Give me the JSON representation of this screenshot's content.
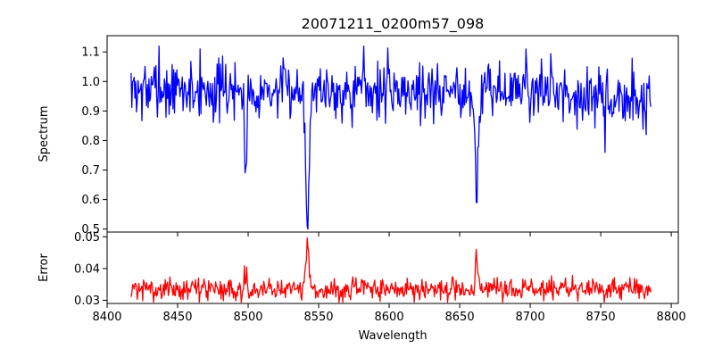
{
  "title": "20071211_0200m57_098",
  "chart_data": [
    {
      "panel": "spectrum",
      "type": "line",
      "title": "20071211_0200m57_098",
      "xlabel": "",
      "ylabel": "Spectrum",
      "xlim": [
        8400,
        8805
      ],
      "ylim": [
        0.49,
        1.155
      ],
      "yticks": [
        0.5,
        0.6,
        0.7,
        0.8,
        0.9,
        1.0,
        1.1
      ],
      "ytick_labels": [
        "0.5",
        "0.6",
        "0.7",
        "0.8",
        "0.9",
        "1.0",
        "1.1"
      ],
      "xticks": [
        8400,
        8450,
        8500,
        8550,
        8600,
        8650,
        8700,
        8750,
        8800
      ],
      "grid": false,
      "series_color": "#0000ff",
      "x_range": [
        8417,
        8786
      ],
      "baseline_level": 0.97,
      "noise_amplitude": 0.05,
      "absorption_lines": [
        {
          "x": 8498,
          "depth": 0.28,
          "width": 1.2
        },
        {
          "x": 8542,
          "depth": 0.45,
          "width": 1.6
        },
        {
          "x": 8662,
          "depth": 0.38,
          "width": 1.4
        }
      ],
      "annotated_points": [
        {
          "x": 8418,
          "y": 1.0
        },
        {
          "x": 8437,
          "y": 1.12
        },
        {
          "x": 8466,
          "y": 1.11
        },
        {
          "x": 8498,
          "y": 0.69
        },
        {
          "x": 8542,
          "y": 0.51
        },
        {
          "x": 8582,
          "y": 1.12
        },
        {
          "x": 8662,
          "y": 0.59
        },
        {
          "x": 8697,
          "y": 1.11
        },
        {
          "x": 8753,
          "y": 0.76
        },
        {
          "x": 8786,
          "y": 0.92
        }
      ]
    },
    {
      "panel": "error",
      "type": "line",
      "xlabel": "Wavelength",
      "ylabel": "Error",
      "xlim": [
        8400,
        8805
      ],
      "ylim": [
        0.029,
        0.0515
      ],
      "yticks": [
        0.03,
        0.04,
        0.05
      ],
      "ytick_labels": [
        "0.03",
        "0.04",
        "0.05"
      ],
      "xticks": [
        8400,
        8450,
        8500,
        8550,
        8600,
        8650,
        8700,
        8750,
        8800
      ],
      "xtick_labels": [
        "8400",
        "8450",
        "8500",
        "8550",
        "8600",
        "8650",
        "8700",
        "8750",
        "8800"
      ],
      "grid": false,
      "series_color": "#ff0000",
      "x_range": [
        8417,
        8786
      ],
      "baseline_level": 0.0335,
      "noise_amplitude": 0.0018,
      "emission_peaks": [
        {
          "x": 8498,
          "height": 0.0045,
          "width": 1.3
        },
        {
          "x": 8542,
          "height": 0.0155,
          "width": 1.5
        },
        {
          "x": 8662,
          "height": 0.0095,
          "width": 1.4
        }
      ]
    }
  ]
}
